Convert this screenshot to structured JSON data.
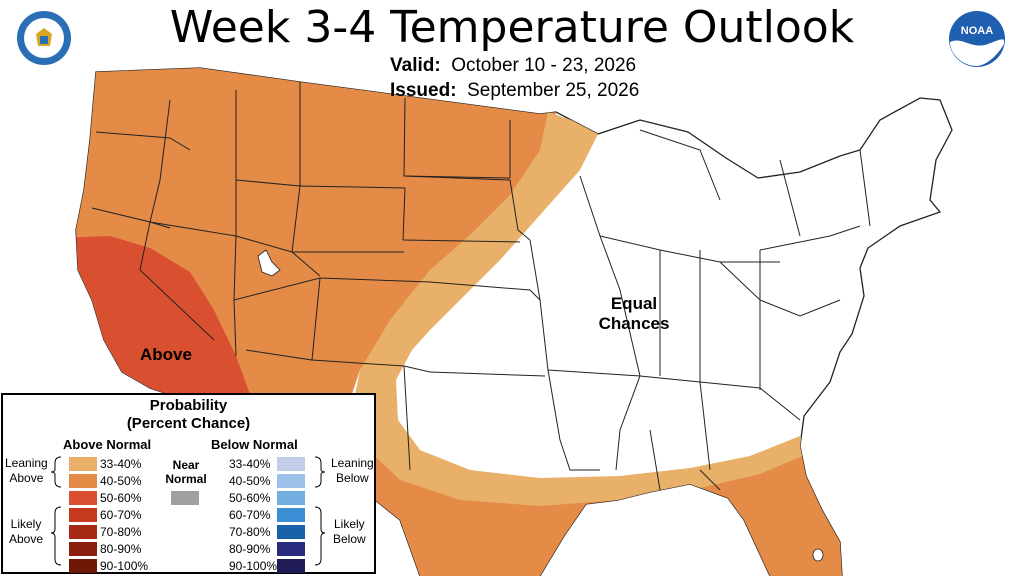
{
  "header": {
    "title": "Week 3-4 Temperature Outlook",
    "valid_label": "Valid:",
    "valid_value": "October 10 - 23, 2026",
    "issued_label": "Issued:",
    "issued_value": "September 25, 2026"
  },
  "logos": {
    "left": "department-of-commerce-seal",
    "right_text": "NOAA"
  },
  "map": {
    "labels": {
      "above": "Above",
      "equal_line1": "Equal",
      "equal_line2": "Chances"
    },
    "colors": {
      "leaning_above": "#e9b06a",
      "above_40_50": "#e48b48",
      "above_50_60": "#d95030",
      "ocean": "#ffffff",
      "state_border": "#222222"
    }
  },
  "legend": {
    "title_line1": "Probability",
    "title_line2": "(Percent Chance)",
    "above_header": "Above Normal",
    "below_header": "Below Normal",
    "near_normal_line1": "Near",
    "near_normal_line2": "Normal",
    "near_normal_color": "#a0a0a0",
    "leaning_above": [
      "Leaning",
      "Above"
    ],
    "likely_above": [
      "Likely",
      "Above"
    ],
    "leaning_below": [
      "Leaning",
      "Below"
    ],
    "likely_below": [
      "Likely",
      "Below"
    ],
    "above": [
      {
        "range": "33-40%",
        "color": "#e9b06a"
      },
      {
        "range": "40-50%",
        "color": "#e48b48"
      },
      {
        "range": "50-60%",
        "color": "#d95030"
      },
      {
        "range": "60-70%",
        "color": "#c53a1f"
      },
      {
        "range": "70-80%",
        "color": "#a72a14"
      },
      {
        "range": "80-90%",
        "color": "#8a1f0e"
      },
      {
        "range": "90-100%",
        "color": "#6e1808"
      }
    ],
    "below": [
      {
        "range": "33-40%",
        "color": "#c4cde8"
      },
      {
        "range": "40-50%",
        "color": "#9dc0e8"
      },
      {
        "range": "50-60%",
        "color": "#72aee0"
      },
      {
        "range": "60-70%",
        "color": "#3a8fd4"
      },
      {
        "range": "70-80%",
        "color": "#1863a8"
      },
      {
        "range": "80-90%",
        "color": "#2a2b7e"
      },
      {
        "range": "90-100%",
        "color": "#201c58"
      }
    ]
  }
}
